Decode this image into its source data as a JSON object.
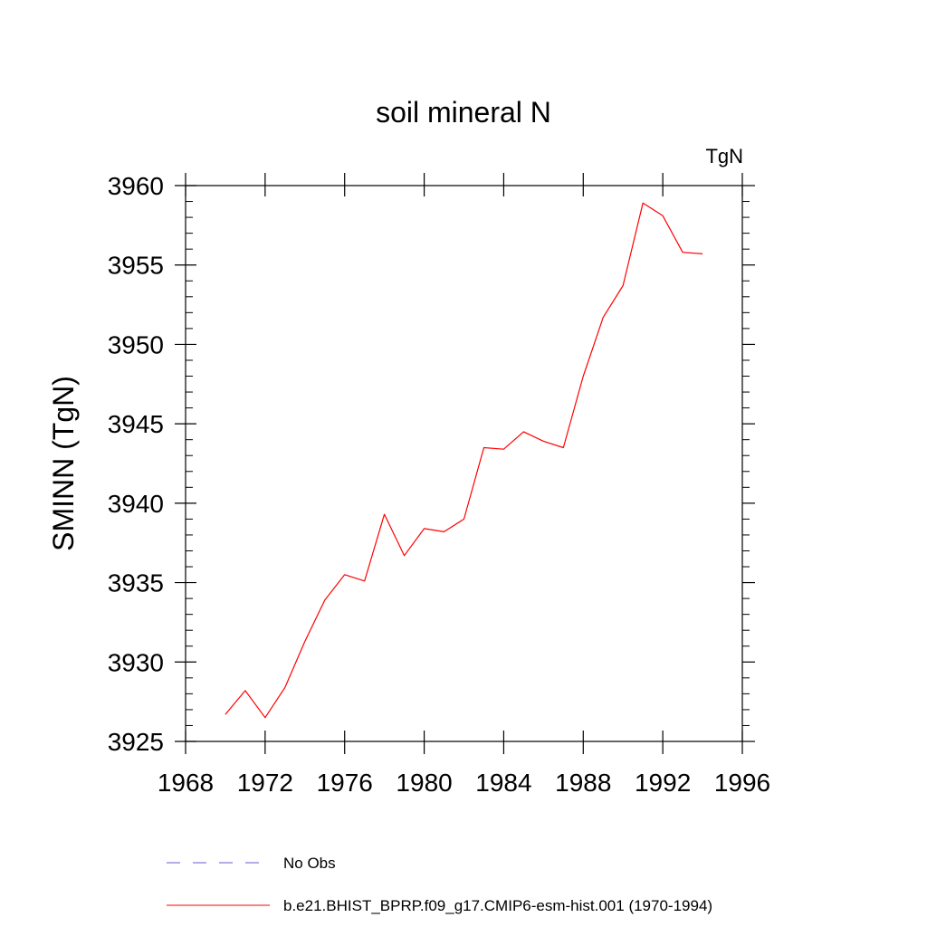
{
  "chart_data": {
    "type": "line",
    "title": "soil mineral N",
    "units_label": "TgN",
    "ylabel": "SMINN  (TgN)",
    "xlabel": "",
    "xlim": [
      1968,
      1996
    ],
    "ylim": [
      3925,
      3960
    ],
    "x_ticks": [
      1968,
      1972,
      1976,
      1980,
      1984,
      1988,
      1992,
      1996
    ],
    "x_tick_labels": [
      "1968",
      "1972",
      "1976",
      "1980",
      "1984",
      "1988",
      "1992",
      "1996"
    ],
    "y_ticks": [
      3925,
      3930,
      3935,
      3940,
      3945,
      3950,
      3955,
      3960
    ],
    "y_tick_labels": [
      "3925",
      "3930",
      "3935",
      "3940",
      "3945",
      "3950",
      "3955",
      "3960"
    ],
    "x_minor_step": 1,
    "y_minor_step": 1,
    "grid": false,
    "series": [
      {
        "name": "b.e21.BHIST_BPRP.f09_g17.CMIP6-esm-hist.001 (1970-1994)",
        "color": "#ff0000",
        "dash": "solid",
        "x": [
          1970,
          1971,
          1972,
          1973,
          1974,
          1975,
          1976,
          1977,
          1978,
          1979,
          1980,
          1981,
          1982,
          1983,
          1984,
          1985,
          1986,
          1987,
          1988,
          1989,
          1990,
          1991,
          1992,
          1993,
          1994
        ],
        "values": [
          3926.7,
          3928.2,
          3926.5,
          3928.4,
          3931.3,
          3933.9,
          3935.5,
          3935.1,
          3939.3,
          3936.7,
          3938.4,
          3938.2,
          3939.0,
          3943.5,
          3943.4,
          3944.5,
          3943.9,
          3943.5,
          3948.0,
          3951.7,
          3953.7,
          3958.9,
          3958.1,
          3955.8,
          3955.7
        ]
      }
    ],
    "legend": {
      "position": "bottom",
      "entries": [
        {
          "label": "No Obs",
          "color": "#6a5acd",
          "dash": "dashed"
        },
        {
          "label": "b.e21.BHIST_BPRP.f09_g17.CMIP6-esm-hist.001 (1970-1994)",
          "color": "#ff0000",
          "dash": "solid"
        }
      ]
    }
  }
}
